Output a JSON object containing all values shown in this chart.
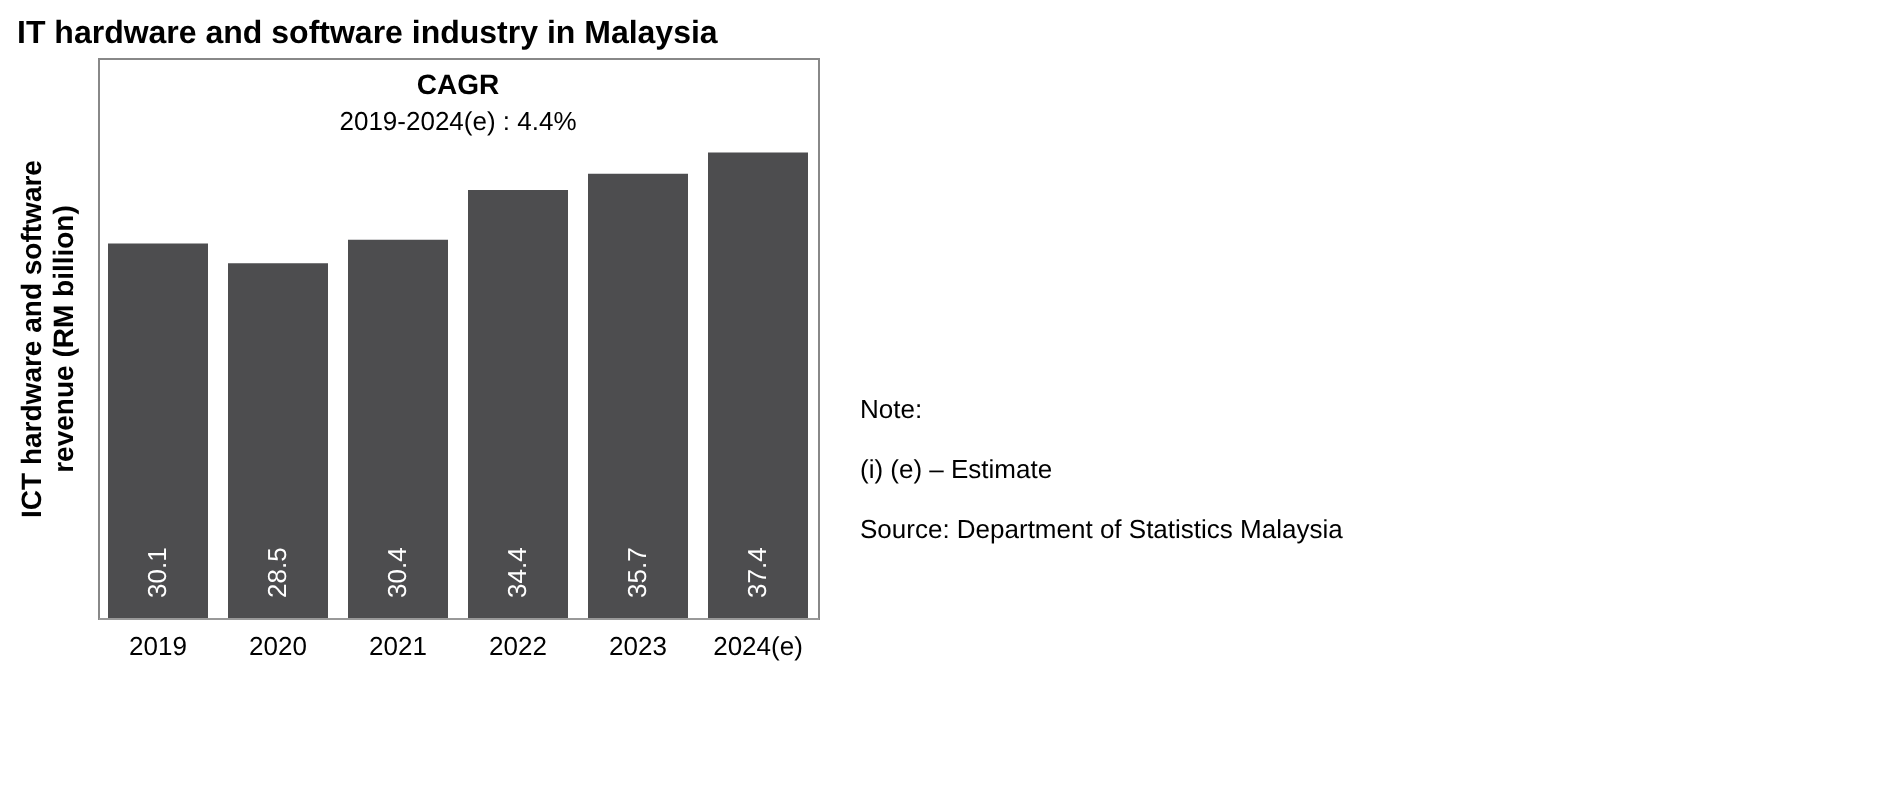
{
  "chart_data": {
    "type": "bar",
    "title": "IT hardware and software industry in Malaysia",
    "ylabel": "ICT hardware and software revenue (RM billion)",
    "categories": [
      "2019",
      "2020",
      "2021",
      "2022",
      "2023",
      "2024(e)"
    ],
    "values": [
      30.1,
      28.5,
      30.4,
      34.4,
      35.7,
      37.4
    ],
    "color": "#4d4d4f",
    "ylim": [
      0,
      45
    ],
    "data_labels": true,
    "tick_labels": "x",
    "grid": false,
    "annotations": [
      "CAGR",
      "2019-2024(e) : 4.4%",
      "Note:",
      "(i)        (e) – Estimate",
      "Source: Department of Statistics Malaysia"
    ]
  }
}
